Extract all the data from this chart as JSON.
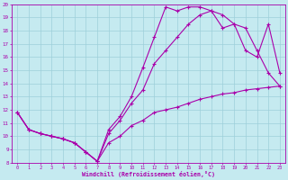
{
  "xlabel": "Windchill (Refroidissement éolien,°C)",
  "line_color": "#aa00aa",
  "bg_color": "#c5eaf0",
  "grid_color": "#9dcfda",
  "xlim_min": -0.5,
  "xlim_max": 23.5,
  "ylim_min": 8,
  "ylim_max": 20,
  "xticks": [
    0,
    1,
    2,
    3,
    4,
    5,
    6,
    7,
    8,
    9,
    10,
    11,
    12,
    13,
    14,
    15,
    16,
    17,
    18,
    19,
    20,
    21,
    22,
    23
  ],
  "yticks": [
    8,
    9,
    10,
    11,
    12,
    13,
    14,
    15,
    16,
    17,
    18,
    19,
    20
  ],
  "line1_x": [
    0,
    1,
    2,
    3,
    4,
    5,
    6,
    7,
    8,
    9,
    10,
    11,
    12,
    13,
    14,
    15,
    16,
    17,
    18,
    19,
    20,
    21,
    22,
    23
  ],
  "line1_y": [
    11.8,
    10.5,
    10.2,
    10.0,
    9.8,
    9.5,
    8.8,
    8.1,
    9.5,
    10.0,
    10.8,
    11.2,
    11.8,
    12.0,
    12.2,
    12.5,
    12.8,
    13.0,
    13.2,
    13.3,
    13.5,
    13.6,
    13.7,
    13.8
  ],
  "line2_x": [
    0,
    1,
    2,
    3,
    4,
    5,
    6,
    7,
    8,
    9,
    10,
    11,
    12,
    13,
    14,
    15,
    16,
    17,
    18,
    19,
    20,
    21,
    22,
    23
  ],
  "line2_y": [
    11.8,
    10.5,
    10.2,
    10.0,
    9.8,
    9.5,
    8.8,
    8.1,
    10.2,
    11.2,
    12.5,
    13.5,
    15.5,
    16.5,
    17.5,
    18.5,
    19.2,
    19.5,
    19.2,
    18.5,
    18.2,
    16.5,
    14.8,
    13.8
  ],
  "line3_x": [
    0,
    1,
    2,
    3,
    4,
    5,
    6,
    7,
    8,
    9,
    10,
    11,
    12,
    13,
    14,
    15,
    16,
    17,
    18,
    19,
    20,
    21,
    22,
    23
  ],
  "line3_y": [
    11.8,
    10.5,
    10.2,
    10.0,
    9.8,
    9.5,
    8.8,
    8.1,
    10.5,
    11.5,
    13.0,
    15.2,
    17.5,
    19.8,
    19.5,
    19.8,
    19.8,
    19.5,
    18.2,
    18.5,
    16.5,
    16.0,
    18.5,
    14.8
  ]
}
